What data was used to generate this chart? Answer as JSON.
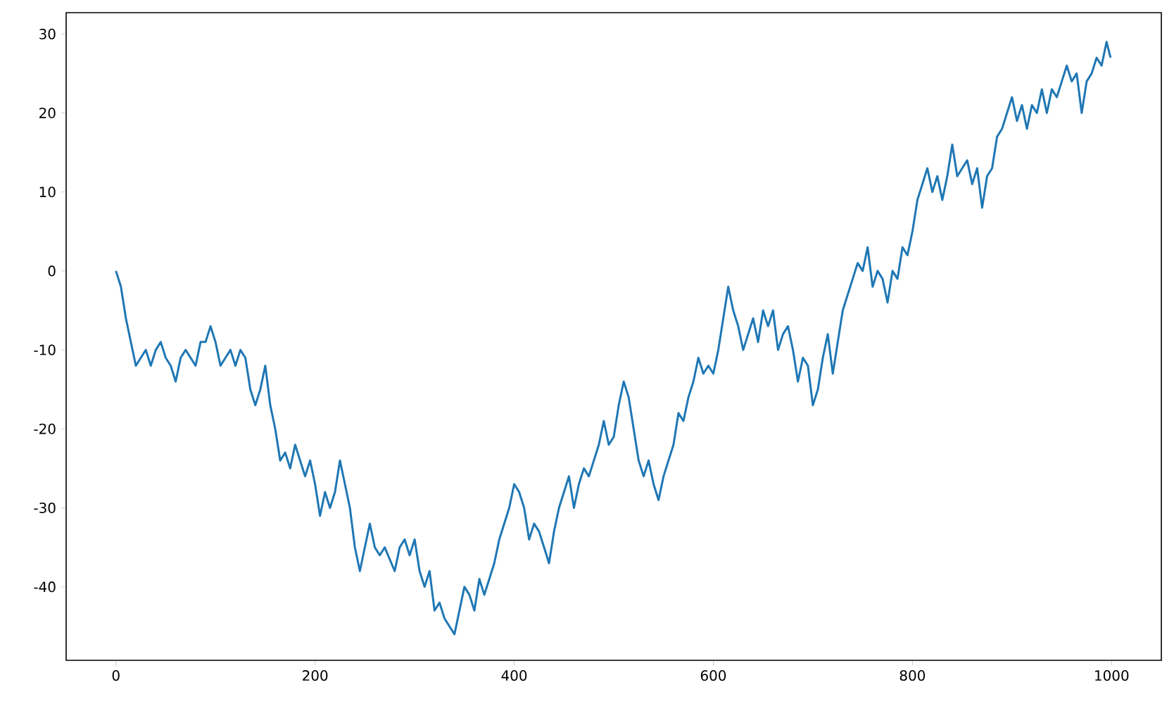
{
  "chart_data": {
    "type": "line",
    "x": [
      0,
      5,
      10,
      15,
      20,
      25,
      30,
      35,
      40,
      45,
      50,
      55,
      60,
      65,
      70,
      80,
      85,
      90,
      95,
      100,
      105,
      110,
      115,
      120,
      125,
      130,
      135,
      140,
      145,
      150,
      155,
      160,
      165,
      170,
      175,
      180,
      185,
      190,
      195,
      200,
      205,
      210,
      215,
      220,
      225,
      230,
      235,
      240,
      245,
      250,
      255,
      260,
      265,
      270,
      280,
      285,
      290,
      295,
      300,
      305,
      310,
      315,
      320,
      325,
      330,
      340,
      345,
      350,
      355,
      360,
      365,
      370,
      375,
      380,
      385,
      390,
      395,
      400,
      405,
      410,
      415,
      420,
      425,
      430,
      435,
      440,
      445,
      450,
      455,
      460,
      465,
      470,
      475,
      480,
      485,
      490,
      495,
      500,
      505,
      510,
      515,
      520,
      525,
      530,
      535,
      540,
      545,
      550,
      555,
      560,
      565,
      570,
      575,
      580,
      585,
      590,
      595,
      600,
      605,
      610,
      615,
      620,
      625,
      630,
      635,
      640,
      645,
      650,
      655,
      660,
      665,
      670,
      675,
      680,
      685,
      690,
      695,
      700,
      705,
      710,
      715,
      720,
      725,
      730,
      735,
      740,
      745,
      750,
      755,
      760,
      765,
      770,
      775,
      780,
      785,
      790,
      795,
      800,
      805,
      810,
      815,
      820,
      825,
      830,
      835,
      840,
      845,
      850,
      855,
      860,
      865,
      870,
      875,
      880,
      885,
      890,
      895,
      900,
      905,
      910,
      915,
      920,
      925,
      930,
      935,
      940,
      945,
      950,
      955,
      960,
      965,
      970,
      975,
      980,
      985,
      990,
      995,
      999
    ],
    "series": [
      {
        "color": "#1f77b4",
        "values": [
          0,
          -2,
          -6,
          -9,
          -12,
          -11,
          -10,
          -12,
          -10,
          -9,
          -11,
          -12,
          -14,
          -11,
          -10,
          -12,
          -9,
          -9,
          -7,
          -9,
          -12,
          -11,
          -10,
          -12,
          -10,
          -11,
          -15,
          -17,
          -15,
          -12,
          -17,
          -20,
          -24,
          -23,
          -25,
          -22,
          -24,
          -26,
          -24,
          -27,
          -31,
          -28,
          -30,
          -28,
          -24,
          -27,
          -30,
          -35,
          -38,
          -35,
          -32,
          -35,
          -36,
          -35,
          -38,
          -35,
          -34,
          -36,
          -34,
          -38,
          -40,
          -38,
          -43,
          -42,
          -44,
          -46,
          -43,
          -40,
          -41,
          -43,
          -39,
          -41,
          -39,
          -37,
          -34,
          -32,
          -30,
          -27,
          -28,
          -30,
          -34,
          -32,
          -33,
          -35,
          -37,
          -33,
          -30,
          -28,
          -26,
          -30,
          -27,
          -25,
          -26,
          -24,
          -22,
          -19,
          -22,
          -21,
          -17,
          -14,
          -16,
          -20,
          -24,
          -26,
          -24,
          -27,
          -29,
          -26,
          -24,
          -22,
          -18,
          -19,
          -16,
          -14,
          -11,
          -13,
          -12,
          -13,
          -10,
          -6,
          -2,
          -5,
          -7,
          -10,
          -8,
          -6,
          -9,
          -5,
          -7,
          -5,
          -10,
          -8,
          -7,
          -10,
          -14,
          -11,
          -12,
          -17,
          -15,
          -11,
          -8,
          -13,
          -9,
          -5,
          -3,
          -1,
          1,
          0,
          3,
          -2,
          0,
          -1,
          -4,
          0,
          -1,
          3,
          2,
          5,
          9,
          11,
          13,
          10,
          12,
          9,
          12,
          16,
          12,
          13,
          14,
          11,
          13,
          8,
          12,
          13,
          17,
          18,
          20,
          22,
          19,
          21,
          18,
          21,
          20,
          23,
          20,
          23,
          22,
          24,
          26,
          24,
          25,
          20,
          24,
          25,
          27,
          26,
          29,
          27
        ]
      }
    ],
    "xlim": [
      -50,
      1050
    ],
    "ylim": [
      -49.3,
      32.7
    ],
    "xticks": [
      0,
      200,
      400,
      600,
      800,
      1000
    ],
    "yticks": [
      -40,
      -30,
      -20,
      -10,
      0,
      10,
      20,
      30
    ]
  }
}
